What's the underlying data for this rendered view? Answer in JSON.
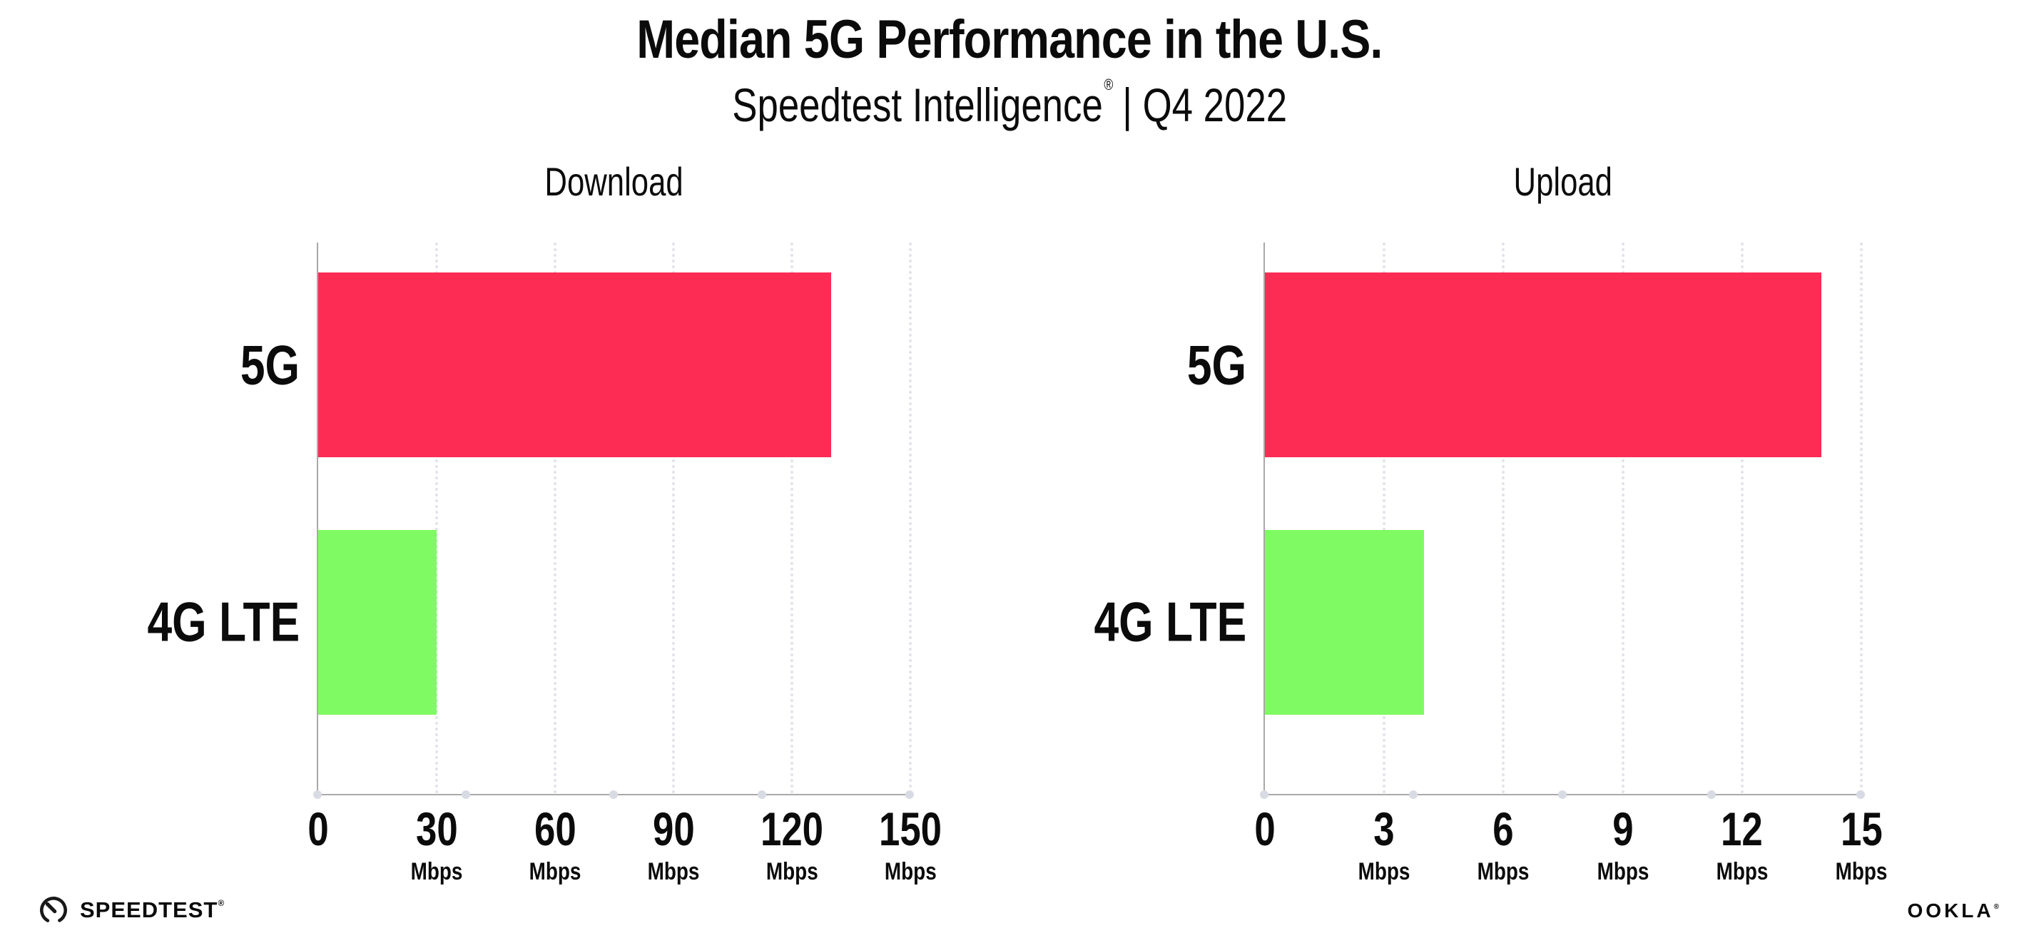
{
  "header": {
    "title": "Median 5G Performance in the U.S.",
    "subtitle_brand": "Speedtest Intelligence",
    "subtitle_reg": "®",
    "subtitle_rest": "| Q4 2022"
  },
  "chart_data": [
    {
      "type": "bar",
      "orientation": "horizontal",
      "title": "Download",
      "categories": [
        "5G",
        "4G LTE"
      ],
      "values": [
        130,
        30
      ],
      "unit": "Mbps",
      "xlim": [
        0,
        150
      ],
      "xticks": [
        0,
        30,
        60,
        90,
        120,
        150
      ],
      "grid": "dotted vertical gridlines at each tick except 0",
      "legend": "none",
      "bar_colors": [
        "#fc2c55",
        "#7ffa63"
      ]
    },
    {
      "type": "bar",
      "orientation": "horizontal",
      "title": "Upload",
      "categories": [
        "5G",
        "4G LTE"
      ],
      "values": [
        14,
        4
      ],
      "unit": "Mbps",
      "xlim": [
        0,
        15
      ],
      "xticks": [
        0,
        3,
        6,
        9,
        12,
        15
      ],
      "grid": "dotted vertical gridlines at each tick except 0",
      "legend": "none",
      "bar_colors": [
        "#fc2c55",
        "#7ffa63"
      ]
    }
  ],
  "footer": {
    "speedtest_label": "SPEEDTEST",
    "speedtest_reg": "®",
    "ookla_label": "OOKLA",
    "ookla_reg": "®"
  },
  "colors": {
    "bar_5g": "#fc2c55",
    "bar_4g_lte": "#7ffa63",
    "axis": "#a9a9a9",
    "gridline": "#e2e2ea",
    "axis_dot": "#d9dbe4",
    "text": "#0b0b0b",
    "background": "#ffffff"
  }
}
